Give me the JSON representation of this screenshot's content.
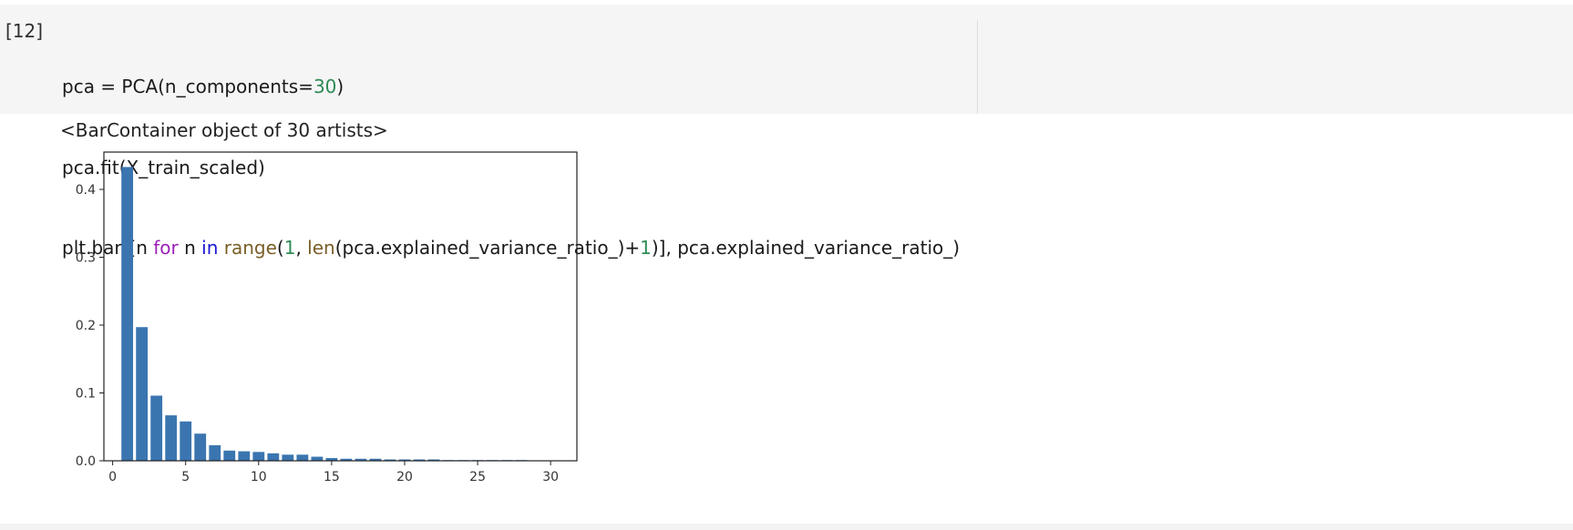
{
  "cell": {
    "prompt": "[12]",
    "code": {
      "line1": {
        "a": "pca = PCA(n_components=",
        "num": "30",
        "b": ")"
      },
      "line2": "pca.fit(X_train_scaled)",
      "line3": {
        "a": "plt.bar([n ",
        "kw_for": "for",
        "mid1": " n ",
        "kw_in": "in",
        "sp": " ",
        "fn_range": "range",
        "p1": "(",
        "num1": "1",
        "p2": ", ",
        "fn_len": "len",
        "p3": "(pca.explained_variance_ratio_)+",
        "num2": "1",
        "p4": ")], pca.explained_variance_ratio_)"
      }
    },
    "output_text": "<BarContainer object of 30 artists>"
  },
  "colors": {
    "bar": "#3a75b0",
    "code_bg": "#f5f5f5"
  },
  "chart_data": {
    "type": "bar",
    "x": [
      1,
      2,
      3,
      4,
      5,
      6,
      7,
      8,
      9,
      10,
      11,
      12,
      13,
      14,
      15,
      16,
      17,
      18,
      19,
      20,
      21,
      22,
      23,
      24,
      25,
      26,
      27,
      28,
      29,
      30
    ],
    "values": [
      0.433,
      0.197,
      0.096,
      0.067,
      0.058,
      0.04,
      0.023,
      0.015,
      0.014,
      0.013,
      0.011,
      0.009,
      0.009,
      0.006,
      0.004,
      0.003,
      0.003,
      0.003,
      0.002,
      0.002,
      0.002,
      0.002,
      0.001,
      0.001,
      0.001,
      0.001,
      0.001,
      0.001,
      0.0005,
      0.0005
    ],
    "xlim": [
      -0.6,
      31.8
    ],
    "ylim": [
      0,
      0.455
    ],
    "xticks": [
      0,
      5,
      10,
      15,
      20,
      25,
      30
    ],
    "yticks": [
      0.0,
      0.1,
      0.2,
      0.3,
      0.4
    ],
    "xtick_labels": [
      "0",
      "5",
      "10",
      "15",
      "20",
      "25",
      "30"
    ],
    "ytick_labels": [
      "0.0",
      "0.1",
      "0.2",
      "0.3",
      "0.4"
    ],
    "grid": false,
    "title": "",
    "xlabel": "",
    "ylabel": ""
  }
}
